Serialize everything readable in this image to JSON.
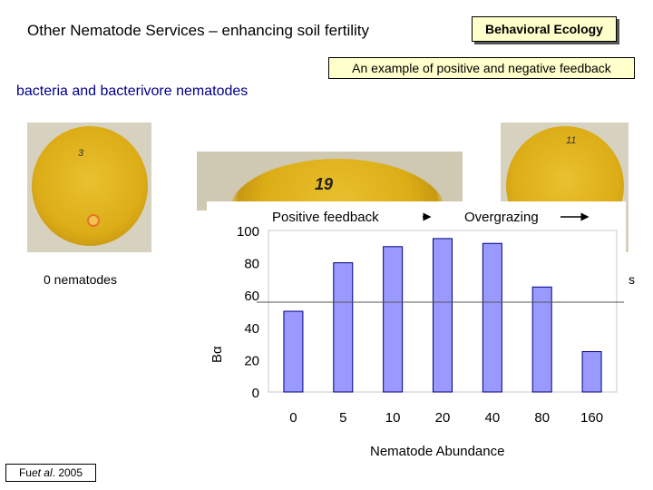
{
  "slide": {
    "title": "Other Nematode Services – enhancing soil fertility",
    "badge": "Behavioral Ecology",
    "example_box": "An example of positive and negative feedback",
    "subtitle": "bacteria and bacterivore nematodes",
    "caption_left": "0 nematodes",
    "caption_right": "s",
    "citation": {
      "author": "Fu ",
      "etal": "et al",
      "rest": ". 2005"
    },
    "photos": {
      "left_label": "3",
      "mid_label": "19",
      "right_label": "11",
      "dish_color": "#dcad17"
    },
    "colors": {
      "bar_fill": "#9999ff",
      "bar_stroke": "#000080",
      "subtitle": "#00008b",
      "box_fill": "#ffffcc"
    }
  },
  "chart_data": {
    "type": "bar",
    "categories": [
      "0",
      "5",
      "10",
      "20",
      "40",
      "80",
      "160"
    ],
    "values": [
      50,
      80,
      90,
      95,
      92,
      65,
      25
    ],
    "annotations": [
      "Positive feedback",
      "Overgrazing"
    ],
    "xlabel": "Nematode Abundance",
    "ylabel": "Bα",
    "yticks": [
      "100",
      "80",
      "60",
      "40",
      "20",
      "0"
    ],
    "ylim": [
      0,
      100
    ],
    "reference_line": 50,
    "grid": false
  }
}
